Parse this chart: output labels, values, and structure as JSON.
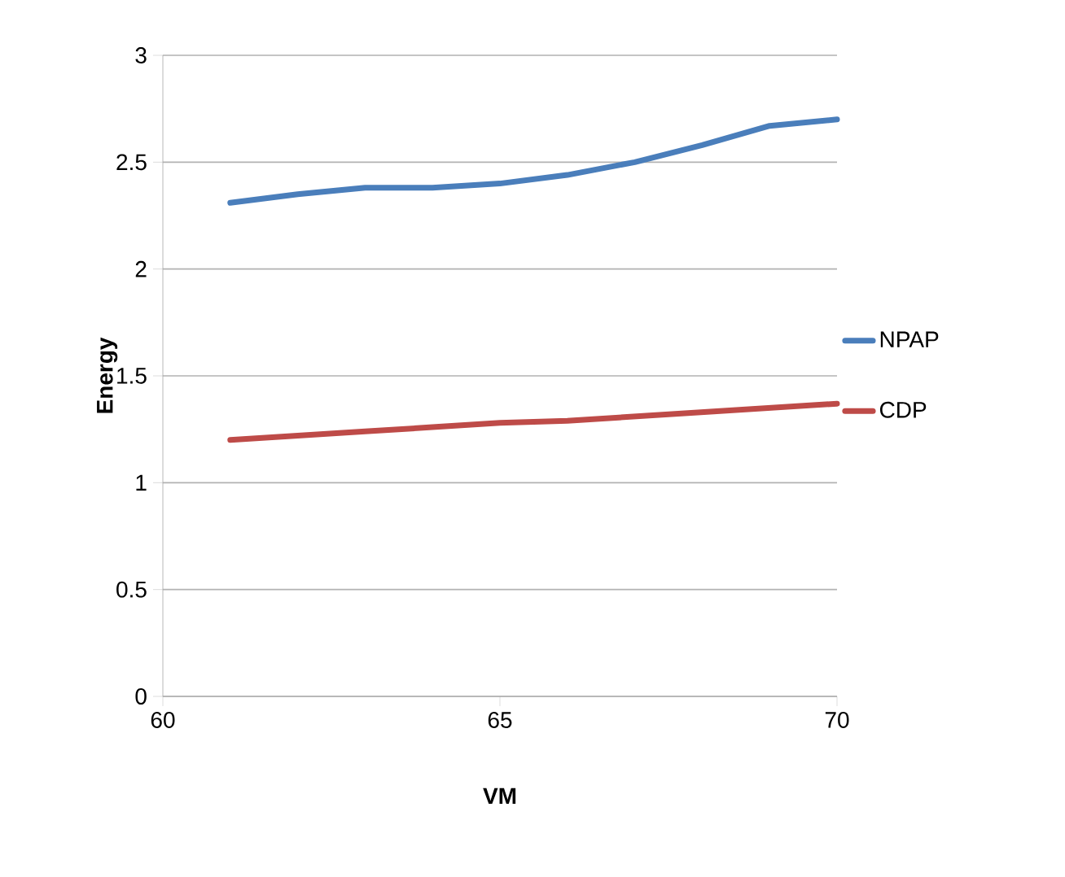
{
  "chart_data": {
    "type": "line",
    "xlabel": "VM",
    "ylabel": "Energy",
    "x": [
      61,
      62,
      63,
      64,
      65,
      66,
      67,
      68,
      69,
      70
    ],
    "series": [
      {
        "name": "NPAP",
        "color": "#4a7ebb",
        "values": [
          2.31,
          2.35,
          2.38,
          2.38,
          2.4,
          2.44,
          2.5,
          2.58,
          2.67,
          2.7
        ]
      },
      {
        "name": "CDP",
        "color": "#be4b48",
        "values": [
          1.2,
          1.22,
          1.24,
          1.26,
          1.28,
          1.29,
          1.31,
          1.33,
          1.35,
          1.37
        ]
      }
    ],
    "xlim": [
      60,
      70
    ],
    "xticks": [
      60,
      65,
      70
    ],
    "ylim": [
      0,
      3
    ],
    "yticks": [
      0,
      0.5,
      1,
      1.5,
      2,
      2.5,
      3
    ],
    "grid": "y",
    "legend": "right",
    "marker": "none",
    "line_style": "solid"
  }
}
